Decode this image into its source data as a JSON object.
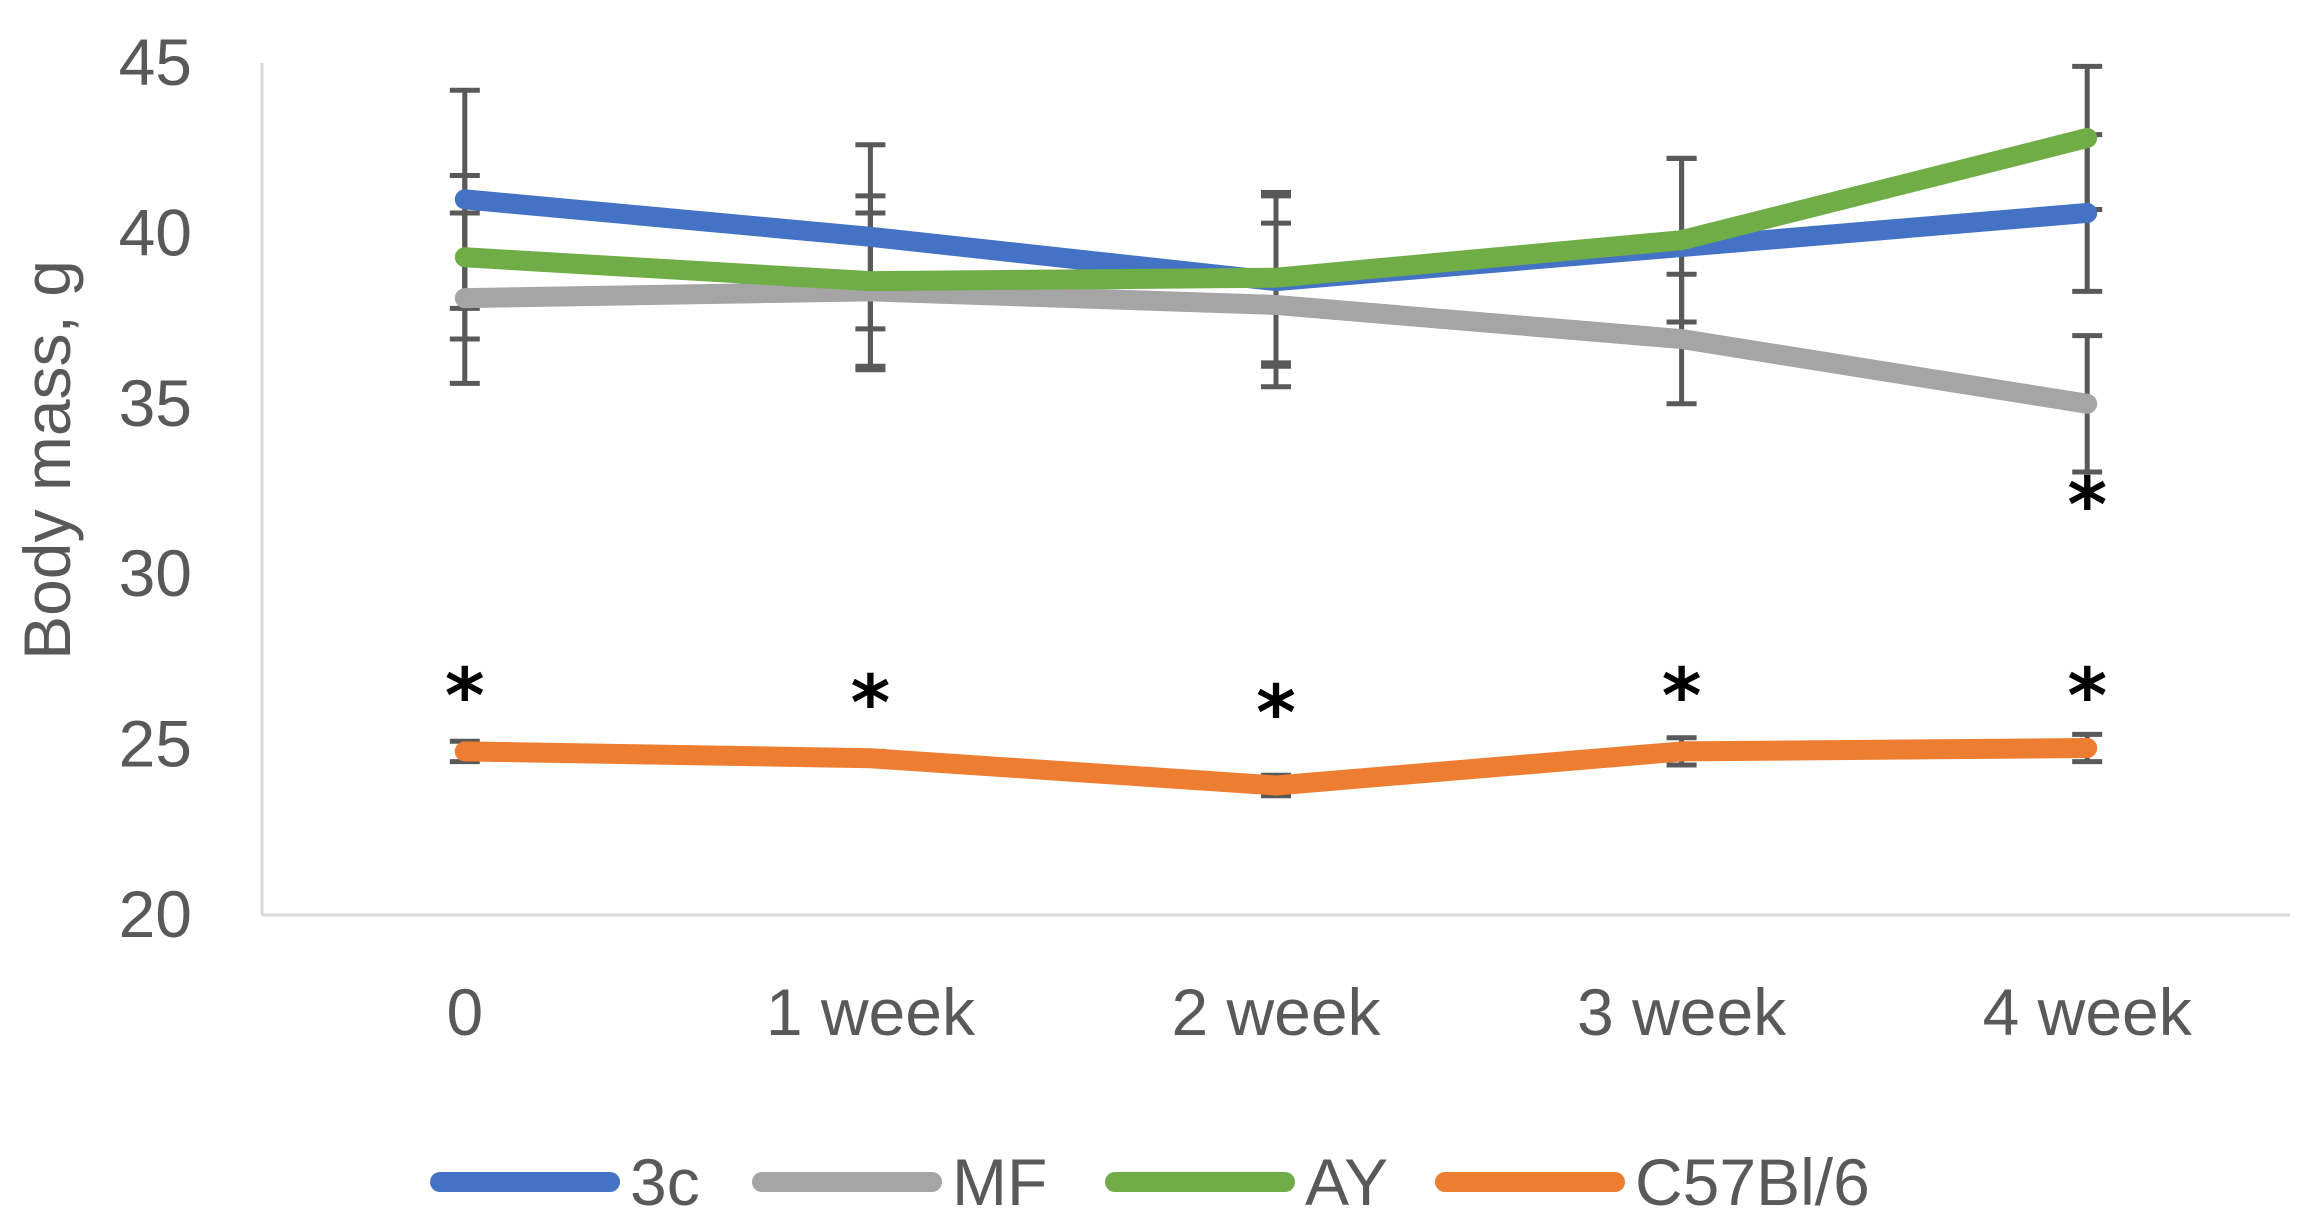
{
  "chart_data": {
    "type": "line",
    "title": "",
    "xlabel": "",
    "ylabel": "Body mass, g",
    "ylim": [
      20,
      45
    ],
    "yticks": [
      20,
      25,
      30,
      35,
      40,
      45
    ],
    "categories": [
      "0",
      "1 week",
      "2 week",
      "3 week",
      "4 week"
    ],
    "grid": false,
    "legend_position": "bottom",
    "series": [
      {
        "name": "3c",
        "color": "#4472C4",
        "values": [
          41.0,
          39.9,
          38.6,
          39.6,
          40.6
        ],
        "errors": [
          3.2,
          2.7,
          2.5,
          2.6,
          2.3
        ]
      },
      {
        "name": "MF",
        "color": "#A5A5A5",
        "values": [
          38.1,
          38.3,
          37.9,
          36.9,
          35.0
        ],
        "errors": [
          2.5,
          2.3,
          2.4,
          1.9,
          2.0
        ]
      },
      {
        "name": "AY",
        "color": "#70AD47",
        "values": [
          39.3,
          38.6,
          38.7,
          39.8,
          42.8
        ],
        "errors": [
          2.4,
          2.5,
          2.5,
          2.4,
          2.1
        ]
      },
      {
        "name": "C57Bl/6",
        "color": "#ED7D31",
        "values": [
          24.8,
          24.6,
          23.8,
          24.8,
          24.9
        ],
        "errors": [
          0.3,
          0.2,
          0.3,
          0.4,
          0.4
        ]
      }
    ],
    "annotations": [
      {
        "text": "*",
        "category": "0",
        "y": 26.6
      },
      {
        "text": "*",
        "category": "1 week",
        "y": 26.4
      },
      {
        "text": "*",
        "category": "2 week",
        "y": 26.1
      },
      {
        "text": "*",
        "category": "3 week",
        "y": 26.6
      },
      {
        "text": "*",
        "category": "4 week",
        "y": 26.6
      },
      {
        "text": "*",
        "category": "4 week",
        "y": 32.2
      }
    ]
  }
}
